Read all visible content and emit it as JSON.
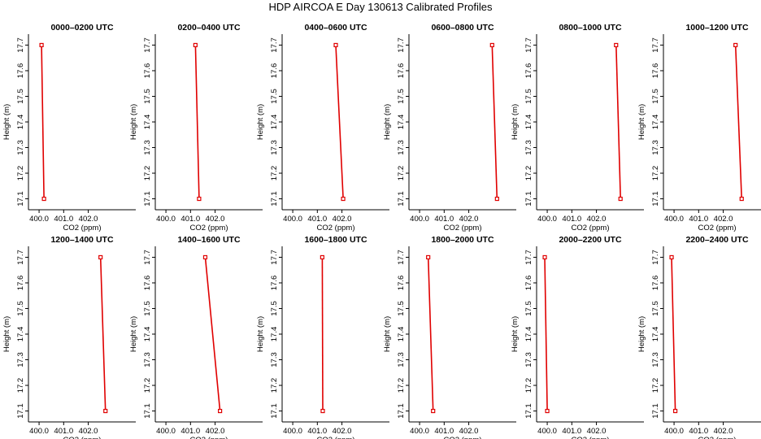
{
  "title": "HDP AIRCOA E  Day 130613  Calibrated Profiles",
  "colors": {
    "line": "#e00000",
    "axis": "#000000",
    "point": "#e00000"
  },
  "chart_data": {
    "type": "line",
    "title": "HDP AIRCOA E  Day 130613  Calibrated Profiles",
    "xlabel": "CO2 (ppm)",
    "ylabel": "Height (m)",
    "xlim": [
      399.7,
      403.8
    ],
    "ylim": [
      17.07,
      17.73
    ],
    "xticks": [
      400.0,
      401.0,
      402.0
    ],
    "xtick_labels": [
      "400.0",
      "401.0",
      "402.0"
    ],
    "yticks": [
      17.1,
      17.2,
      17.3,
      17.4,
      17.5,
      17.6,
      17.7
    ],
    "ytick_labels": [
      "17.1",
      "17.2",
      "17.3",
      "17.4",
      "17.5",
      "17.6",
      "17.7"
    ],
    "grid": false,
    "panels": [
      {
        "title": "0000–0200 UTC",
        "x": [
          400.1,
          400.2
        ],
        "y": [
          17.7,
          17.1
        ]
      },
      {
        "title": "0200–0400 UTC",
        "x": [
          401.2,
          401.35
        ],
        "y": [
          17.7,
          17.1
        ]
      },
      {
        "title": "0400–0600 UTC",
        "x": [
          401.75,
          402.05
        ],
        "y": [
          17.7,
          17.1
        ]
      },
      {
        "title": "0600–0800 UTC",
        "x": [
          402.95,
          403.15
        ],
        "y": [
          17.7,
          17.1
        ]
      },
      {
        "title": "0800–1000 UTC",
        "x": [
          402.8,
          402.98
        ],
        "y": [
          17.7,
          17.1
        ]
      },
      {
        "title": "1000–1200 UTC",
        "x": [
          402.5,
          402.75
        ],
        "y": [
          17.7,
          17.1
        ]
      },
      {
        "title": "1200–1400 UTC",
        "x": [
          402.5,
          402.7
        ],
        "y": [
          17.7,
          17.1
        ]
      },
      {
        "title": "1400–1600 UTC",
        "x": [
          401.6,
          402.2
        ],
        "y": [
          17.7,
          17.1
        ]
      },
      {
        "title": "1600–1800 UTC",
        "x": [
          401.2,
          401.22
        ],
        "y": [
          17.7,
          17.1
        ]
      },
      {
        "title": "1800–2000 UTC",
        "x": [
          400.35,
          400.55
        ],
        "y": [
          17.7,
          17.1
        ]
      },
      {
        "title": "2000–2200 UTC",
        "x": [
          399.9,
          400.0
        ],
        "y": [
          17.7,
          17.1
        ]
      },
      {
        "title": "2200–2400 UTC",
        "x": [
          399.9,
          400.05
        ],
        "y": [
          17.7,
          17.1
        ]
      }
    ]
  }
}
